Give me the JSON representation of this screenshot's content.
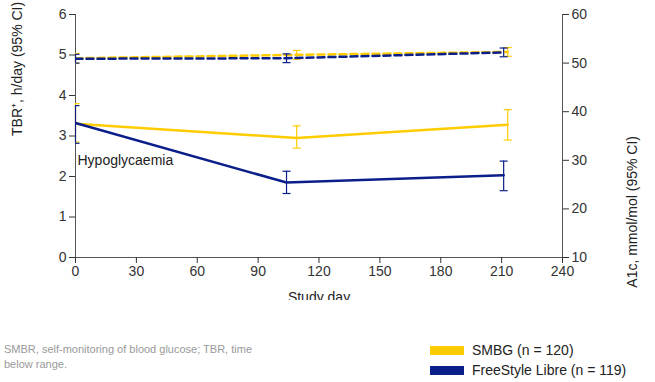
{
  "chart_data": {
    "type": "line",
    "x_label": "Study day",
    "y_label": "TBR⁺, h/day (95% CI)",
    "y2_label": "A1c, mmol/mol (95% CI)",
    "xlim": [
      0,
      240
    ],
    "xticks": [
      0,
      30,
      60,
      90,
      120,
      150,
      180,
      210,
      240
    ],
    "ylim": [
      0,
      6
    ],
    "yticks": [
      0,
      1,
      2,
      3,
      4,
      5,
      6
    ],
    "y2lim": [
      10,
      60
    ],
    "y2ticks": [
      10,
      20,
      30,
      40,
      50,
      60
    ],
    "annotations": [
      {
        "text": "Hypoglycaemia",
        "x": 0,
        "y": 2.4
      }
    ],
    "caption": "SMBR, self-monitoring of blood glucose; TBR, time below range.",
    "legend": "bottom-right",
    "series": [
      {
        "name": "SMBG (n = 120)",
        "color": "#FFCC00",
        "line_style": "solid",
        "axis": "y",
        "x": [
          0,
          109,
          213
        ],
        "values": [
          3.3,
          2.95,
          3.28
        ],
        "ci_low": [
          2.85,
          2.7,
          2.9
        ],
        "ci_high": [
          3.8,
          3.25,
          3.65
        ]
      },
      {
        "name": "FreeStyle Libre (n = 119)",
        "color": "#0B1F8A",
        "line_style": "solid",
        "axis": "y",
        "x": [
          0,
          104,
          211
        ],
        "values": [
          3.32,
          1.85,
          2.03
        ],
        "ci_low": [
          2.82,
          1.58,
          1.65
        ],
        "ci_high": [
          3.75,
          2.13,
          2.38
        ]
      },
      {
        "name": "SMBG (n = 120)",
        "color": "#FFCC00",
        "line_style": "dashed",
        "axis": "y2",
        "x": [
          0,
          109,
          213
        ],
        "values": [
          51.0,
          51.7,
          52.3
        ],
        "ci_low": [
          50.0,
          50.8,
          51.4
        ],
        "ci_high": [
          52.0,
          52.6,
          53.2
        ]
      },
      {
        "name": "FreeStyle Libre (n = 119)",
        "color": "#0B1F8A",
        "line_style": "dashed",
        "axis": "y2",
        "x": [
          0,
          104,
          211
        ],
        "values": [
          50.9,
          51.0,
          52.2
        ],
        "ci_low": [
          50.0,
          50.1,
          51.3
        ],
        "ci_high": [
          51.8,
          51.9,
          53.1
        ]
      }
    ]
  }
}
